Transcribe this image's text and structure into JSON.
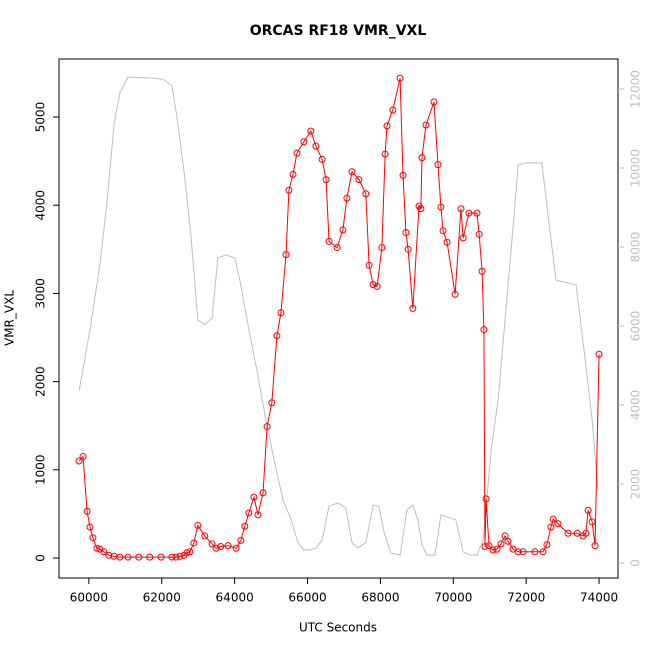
{
  "chart_data": {
    "type": "line",
    "title": "ORCAS RF18 VMR_VXL",
    "xlabel": "UTC Seconds",
    "ylabel": "VMR_VXL",
    "xlim": [
      59180,
      74520
    ],
    "ylim": [
      -227,
      5658
    ],
    "y2lim": [
      -380,
      12760
    ],
    "xticks": [
      60000,
      62000,
      64000,
      66000,
      68000,
      70000,
      72000,
      74000
    ],
    "yticks": [
      0,
      1000,
      2000,
      3000,
      4000,
      5000
    ],
    "y2ticks": [
      0,
      2000,
      4000,
      6000,
      8000,
      10000,
      12000
    ],
    "series": [
      {
        "color": "#bebebe",
        "axis": "y2",
        "markers": false,
        "x": [
          59730,
          60030,
          60300,
          60490,
          60690,
          60850,
          61070,
          61670,
          62030,
          62280,
          62420,
          62610,
          62800,
          62990,
          63180,
          63380,
          63540,
          63620,
          63760,
          64010,
          64170,
          64390,
          64610,
          64860,
          65080,
          65330,
          65550,
          65740,
          65900,
          66070,
          66230,
          66400,
          66590,
          66840,
          67050,
          67220,
          67380,
          67600,
          67800,
          67960,
          68100,
          68290,
          68540,
          68730,
          68890,
          69030,
          69140,
          69280,
          69500,
          69660,
          69850,
          70070,
          70270,
          70460,
          70650,
          70820,
          71040,
          71230,
          71420,
          71610,
          71780,
          72000,
          72430,
          72600,
          72820,
          73150,
          73370,
          73620,
          73810,
          73970
        ],
        "values": [
          4350,
          5900,
          7540,
          9060,
          11090,
          11900,
          12300,
          12280,
          12250,
          12080,
          11270,
          9920,
          8300,
          6150,
          6030,
          6200,
          7720,
          7750,
          7800,
          7720,
          7040,
          5900,
          4890,
          3620,
          2610,
          1590,
          1090,
          510,
          330,
          330,
          380,
          580,
          1440,
          1520,
          1390,
          510,
          380,
          510,
          1470,
          1420,
          780,
          250,
          200,
          1340,
          1470,
          1090,
          460,
          200,
          200,
          1220,
          1160,
          1090,
          280,
          200,
          200,
          580,
          2860,
          4130,
          6150,
          8180,
          10080,
          10130,
          10130,
          8810,
          7160,
          7090,
          7040,
          5140,
          3620,
          1850
        ]
      },
      {
        "color": "#ff0000",
        "markers": true,
        "x": [
          59730,
          59840,
          59950,
          60030,
          60110,
          60220,
          60300,
          60410,
          60550,
          60690,
          60850,
          61070,
          61370,
          61670,
          61980,
          62280,
          62390,
          62500,
          62610,
          62690,
          62770,
          62880,
          62990,
          63180,
          63380,
          63490,
          63620,
          63820,
          64040,
          64170,
          64280,
          64390,
          64530,
          64640,
          64780,
          64890,
          65020,
          65160,
          65270,
          65410,
          65490,
          65600,
          65710,
          65900,
          66090,
          66230,
          66400,
          66510,
          66590,
          66810,
          66970,
          67080,
          67220,
          67410,
          67600,
          67690,
          67800,
          67910,
          68040,
          68130,
          68180,
          68340,
          68540,
          68620,
          68700,
          68760,
          68890,
          69060,
          69110,
          69140,
          69250,
          69470,
          69580,
          69660,
          69720,
          69830,
          70050,
          70210,
          70270,
          70430,
          70650,
          70710,
          70790,
          70840,
          70870,
          70900,
          70980,
          71090,
          71200,
          71310,
          71420,
          71500,
          71640,
          71780,
          71910,
          72240,
          72460,
          72570,
          72680,
          72740,
          72870,
          73150,
          73400,
          73560,
          73640,
          73700,
          73810,
          73890,
          74000
        ],
        "values": [
          1100,
          1150,
          530,
          350,
          230,
          110,
          100,
          70,
          30,
          20,
          10,
          10,
          10,
          10,
          10,
          10,
          10,
          20,
          30,
          60,
          70,
          170,
          370,
          250,
          160,
          110,
          130,
          140,
          110,
          200,
          360,
          510,
          690,
          490,
          740,
          1490,
          1760,
          2520,
          2780,
          3440,
          4170,
          4350,
          4590,
          4720,
          4840,
          4670,
          4520,
          4290,
          3590,
          3520,
          3720,
          4080,
          4380,
          4290,
          4130,
          3320,
          3100,
          3080,
          3520,
          4580,
          4900,
          5080,
          5440,
          4340,
          3690,
          3500,
          2830,
          3990,
          3960,
          4540,
          4910,
          5170,
          4460,
          3980,
          3710,
          3580,
          2990,
          3960,
          3630,
          3910,
          3910,
          3670,
          3250,
          2590,
          130,
          670,
          140,
          90,
          100,
          160,
          250,
          190,
          100,
          70,
          70,
          70,
          70,
          150,
          350,
          440,
          390,
          280,
          280,
          250,
          280,
          540,
          410,
          140,
          2310
        ]
      }
    ]
  }
}
